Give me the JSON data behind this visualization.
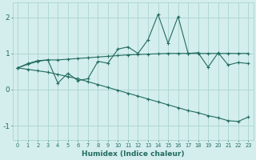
{
  "x": [
    0,
    1,
    2,
    3,
    4,
    5,
    6,
    7,
    8,
    9,
    10,
    11,
    12,
    13,
    14,
    15,
    16,
    17,
    18,
    19,
    20,
    21,
    22,
    23
  ],
  "line1": [
    0.6,
    0.72,
    0.8,
    0.82,
    0.18,
    0.45,
    0.25,
    0.3,
    0.78,
    0.73,
    1.12,
    1.18,
    1.0,
    1.38,
    2.08,
    1.28,
    2.02,
    1.0,
    1.02,
    0.62,
    1.02,
    0.68,
    0.75,
    0.72
  ],
  "line2": [
    0.6,
    0.7,
    0.78,
    0.82,
    0.82,
    0.84,
    0.86,
    0.88,
    0.9,
    0.92,
    0.94,
    0.96,
    0.97,
    0.98,
    0.99,
    1.0,
    1.0,
    1.0,
    1.0,
    1.0,
    1.0,
    1.0,
    1.0,
    1.0
  ],
  "line3": [
    0.6,
    0.56,
    0.52,
    0.48,
    0.42,
    0.36,
    0.3,
    0.22,
    0.14,
    0.06,
    -0.02,
    -0.1,
    -0.18,
    -0.26,
    -0.34,
    -0.42,
    -0.5,
    -0.58,
    -0.64,
    -0.72,
    -0.78,
    -0.86,
    -0.88,
    -0.76
  ],
  "color": "#226b5e",
  "bg_color": "#d4eeed",
  "grid_color": "#aad4d0",
  "xlabel": "Humidex (Indice chaleur)",
  "yticks": [
    -1,
    0,
    1,
    2
  ],
  "xticks": [
    0,
    1,
    2,
    3,
    4,
    5,
    6,
    7,
    8,
    9,
    10,
    11,
    12,
    13,
    14,
    15,
    16,
    17,
    18,
    19,
    20,
    21,
    22,
    23
  ],
  "ylim": [
    -1.4,
    2.4
  ],
  "xlim": [
    -0.5,
    23.5
  ]
}
